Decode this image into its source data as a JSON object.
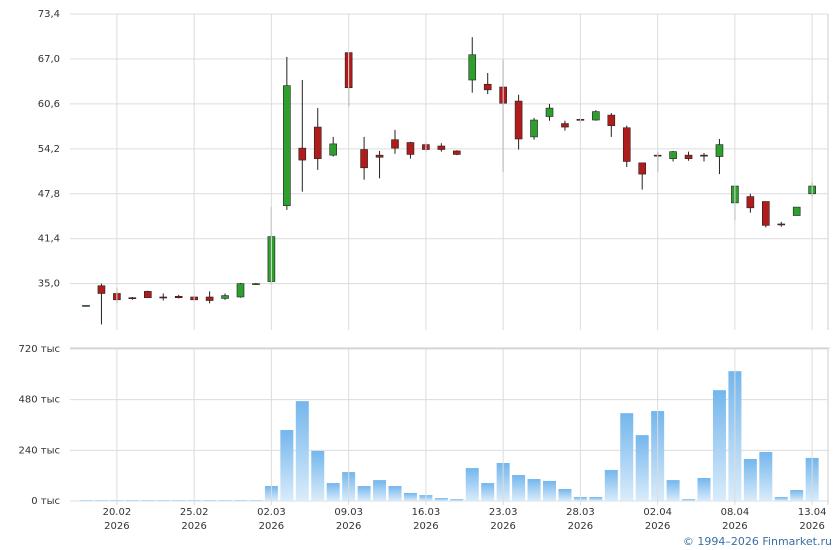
{
  "chart_data": [
    {
      "type": "candlestick",
      "up_color": "#2e9e2e",
      "down_color": "#b01c1c",
      "grid": true,
      "ylim": [
        28.4,
        73.4
      ],
      "yticks": [
        {
          "value": 35.0,
          "label": "35,0"
        },
        {
          "value": 41.4,
          "label": "41,4"
        },
        {
          "value": 47.8,
          "label": "47,8"
        },
        {
          "value": 54.2,
          "label": "54,2"
        },
        {
          "value": 60.6,
          "label": "60,6"
        },
        {
          "value": 67.0,
          "label": "67,0"
        },
        {
          "value": 73.4,
          "label": "73,4"
        }
      ],
      "open": [
        31.9,
        34.7,
        33.6,
        33.0,
        33.9,
        33.1,
        33.2,
        33.1,
        33.1,
        32.9,
        33.1,
        35.0,
        35.3,
        46.1,
        54.3,
        57.3,
        53.3,
        67.9,
        54.1,
        53.3,
        55.5,
        55.1,
        54.8,
        54.6,
        53.9,
        64.0,
        63.4,
        63.0,
        61.0,
        55.9,
        58.8,
        57.8,
        58.4,
        58.3,
        59.0,
        57.2,
        52.2,
        53.3,
        52.8,
        53.3,
        53.3,
        53.1,
        46.5,
        47.4,
        46.7,
        43.5,
        44.7,
        47.8
      ],
      "high": [
        31.9,
        35.0,
        34.4,
        33.1,
        34.0,
        33.6,
        33.4,
        33.3,
        33.9,
        33.6,
        35.1,
        35.1,
        45.9,
        67.3,
        64.0,
        60.0,
        55.9,
        67.9,
        55.9,
        53.9,
        56.9,
        55.2,
        55.0,
        55.0,
        54.0,
        70.1,
        65.0,
        66.9,
        61.9,
        58.6,
        60.6,
        58.2,
        58.6,
        59.7,
        59.3,
        57.5,
        52.2,
        53.8,
        53.9,
        53.8,
        53.6,
        55.6,
        48.9,
        47.8,
        46.7,
        43.8,
        45.9,
        49.4
      ],
      "low": [
        31.9,
        29.2,
        32.2,
        32.7,
        33.0,
        32.6,
        32.9,
        32.6,
        32.2,
        32.7,
        33.0,
        34.9,
        34.9,
        45.5,
        48.1,
        51.2,
        53.1,
        60.2,
        49.8,
        50.0,
        53.5,
        52.8,
        53.8,
        53.8,
        53.3,
        62.2,
        62.0,
        50.9,
        54.1,
        55.5,
        58.2,
        56.8,
        57.9,
        58.2,
        55.9,
        51.6,
        48.4,
        50.9,
        52.4,
        52.5,
        52.4,
        50.6,
        44.0,
        45.1,
        43.0,
        43.1,
        44.7,
        47.4
      ],
      "close": [
        31.9,
        33.6,
        32.7,
        32.9,
        33.0,
        33.0,
        33.0,
        32.7,
        32.6,
        33.3,
        35.0,
        35.0,
        41.7,
        63.2,
        52.6,
        52.8,
        54.9,
        62.9,
        51.5,
        53.0,
        54.3,
        53.4,
        54.1,
        54.1,
        53.4,
        67.6,
        62.6,
        60.7,
        55.6,
        58.3,
        60.0,
        57.3,
        58.3,
        59.5,
        57.5,
        52.4,
        50.6,
        53.2,
        53.8,
        52.8,
        53.2,
        54.8,
        48.9,
        45.8,
        43.3,
        43.4,
        45.9,
        48.9
      ]
    },
    {
      "type": "bar",
      "grid": true,
      "color_top": "#74b6ec",
      "color_bottom": "#d9ecfb",
      "ylim": [
        0,
        720
      ],
      "yticks": [
        {
          "value": 0,
          "label": "0 тыс"
        },
        {
          "value": 240,
          "label": "240 тыс"
        },
        {
          "value": 480,
          "label": "480 тыс"
        },
        {
          "value": 720,
          "label": "720 тыс"
        }
      ],
      "categories": [
        null,
        null,
        {
          "day": "20.02",
          "year": "2026"
        },
        null,
        null,
        null,
        null,
        {
          "day": "25.02",
          "year": "2026"
        },
        null,
        null,
        null,
        null,
        {
          "day": "02.03",
          "year": "2026"
        },
        null,
        null,
        null,
        null,
        {
          "day": "09.03",
          "year": "2026"
        },
        null,
        null,
        null,
        null,
        {
          "day": "16.03",
          "year": "2026"
        },
        null,
        null,
        null,
        null,
        {
          "day": "23.03",
          "year": "2026"
        },
        null,
        null,
        null,
        null,
        {
          "day": "28.03",
          "year": "2026"
        },
        null,
        null,
        null,
        null,
        {
          "day": "02.04",
          "year": "2026"
        },
        null,
        null,
        null,
        null,
        {
          "day": "08.04",
          "year": "2026"
        },
        null,
        null,
        null,
        null,
        {
          "day": "13.04",
          "year": "2026"
        }
      ],
      "values": [
        3,
        3,
        3,
        3,
        3,
        3,
        3,
        3,
        3,
        3,
        3,
        3,
        71,
        336,
        473,
        237,
        85,
        137,
        71,
        99,
        71,
        38,
        28,
        14,
        9,
        156,
        85,
        180,
        123,
        104,
        95,
        57,
        19,
        19,
        147,
        416,
        312,
        426,
        99,
        9,
        109,
        525,
        615,
        199,
        232,
        19,
        52,
        204
      ]
    }
  ],
  "footer": "© 1994–2026 Finmarket.ru"
}
